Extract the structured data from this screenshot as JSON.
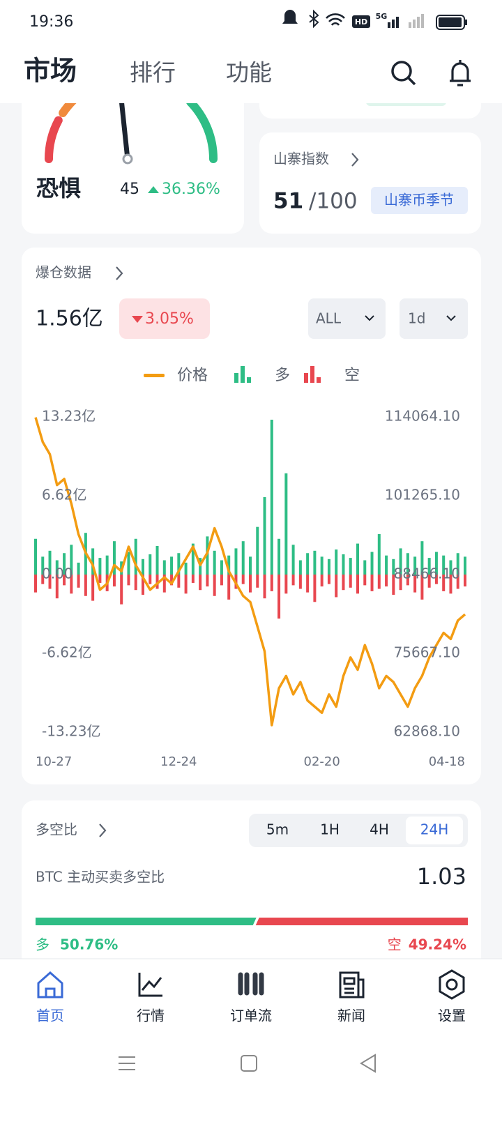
{
  "status_bar": {
    "time": "19:36",
    "hd": "HD",
    "network": "5G"
  },
  "header": {
    "tabs": [
      "市场",
      "排行",
      "功能"
    ]
  },
  "fear_greed": {
    "label": "恐惧",
    "value": 45,
    "change": "36.36%"
  },
  "altcoin_index": {
    "title": "山寨指数",
    "value": "51",
    "max": "/100",
    "badge": "山寨币季节"
  },
  "liquidation": {
    "title": "爆仓数据",
    "total": "1.56亿",
    "change": "3.05%",
    "filters": [
      "ALL",
      "1d"
    ]
  },
  "chart_data": {
    "type": "bar",
    "categories": [
      "10-27",
      null,
      null,
      null,
      null,
      null,
      null,
      null,
      null,
      null,
      null,
      null,
      null,
      null,
      null,
      null,
      null,
      null,
      null,
      null,
      "12-24",
      null,
      null,
      null,
      null,
      null,
      null,
      null,
      null,
      null,
      null,
      null,
      null,
      null,
      null,
      null,
      null,
      null,
      null,
      null,
      "02-20",
      null,
      null,
      null,
      null,
      null,
      null,
      null,
      null,
      null,
      null,
      null,
      null,
      null,
      null,
      null,
      null,
      null,
      null,
      null,
      "04-18"
    ],
    "series": [
      {
        "name": "价格",
        "type": "line",
        "axis": "y2",
        "color": "#f39c12",
        "values": [
          114000,
          110000,
          108000,
          103000,
          104000,
          100000,
          95000,
          92000,
          90000,
          86000,
          87000,
          90000,
          89000,
          93000,
          90000,
          88000,
          86000,
          87000,
          88000,
          87000,
          89000,
          91000,
          93000,
          90000,
          92000,
          96000,
          93000,
          89000,
          87000,
          85000,
          84000,
          80000,
          76000,
          64000,
          70000,
          72000,
          69000,
          71000,
          68000,
          67000,
          66000,
          69000,
          67000,
          72000,
          75000,
          73000,
          77000,
          74000,
          70000,
          72000,
          71000,
          69000,
          67000,
          70000,
          72000,
          75000,
          77000,
          79000,
          78000,
          81000,
          82000
        ]
      },
      {
        "name": "多",
        "type": "bar",
        "color": "#2ebd85",
        "values": [
          3.0,
          1.5,
          2.0,
          1.2,
          1.8,
          2.5,
          1.0,
          3.5,
          2.2,
          1.4,
          1.6,
          2.8,
          1.1,
          1.9,
          3.0,
          1.3,
          1.7,
          2.4,
          1.2,
          1.5,
          1.8,
          1.0,
          2.6,
          1.4,
          3.2,
          2.0,
          1.2,
          1.6,
          2.2,
          2.8,
          1.5,
          4.0,
          6.5,
          13.0,
          3.0,
          8.5,
          2.5,
          1.2,
          1.8,
          2.0,
          1.5,
          1.3,
          2.1,
          1.7,
          1.4,
          2.6,
          1.2,
          1.9,
          3.4,
          1.6,
          1.3,
          2.2,
          1.8,
          1.5,
          2.8,
          1.4,
          1.9,
          1.6,
          1.2,
          1.8,
          1.5
        ]
      },
      {
        "name": "空",
        "type": "bar",
        "color": "#e8474f",
        "values": [
          -1.5,
          -0.8,
          -1.2,
          -2.0,
          -0.9,
          -1.6,
          -1.1,
          -1.8,
          -2.2,
          -0.7,
          -1.4,
          -1.0,
          -2.5,
          -0.9,
          -1.3,
          -1.7,
          -0.8,
          -1.2,
          -1.5,
          -0.9,
          -1.1,
          -1.6,
          -0.7,
          -1.3,
          -1.0,
          -1.8,
          -0.9,
          -2.1,
          -1.2,
          -0.8,
          -1.5,
          -1.1,
          -2.0,
          -1.4,
          -3.7,
          -1.6,
          -0.9,
          -1.2,
          -1.5,
          -2.3,
          -1.0,
          -0.8,
          -1.9,
          -1.3,
          -1.1,
          -1.6,
          -0.9,
          -1.4,
          -1.2,
          -1.0,
          -1.7,
          -1.3,
          -0.9,
          -1.5,
          -2.1,
          -1.1,
          -0.8,
          -1.4,
          -1.6,
          -1.2,
          -1.0
        ]
      }
    ],
    "ylim": [
      -13.23,
      13.23
    ],
    "yticks": [
      {
        "value": 13.23,
        "label": "13.23亿"
      },
      {
        "value": 6.62,
        "label": "6.62亿"
      },
      {
        "value": 0,
        "label": "0.00"
      },
      {
        "value": -6.62,
        "label": "-6.62亿"
      },
      {
        "value": -13.23,
        "label": "-13.23亿"
      }
    ],
    "y2lim": [
      62868.1,
      114064.1
    ],
    "y2ticks": [
      {
        "value": 114064.1,
        "label": "114064.10"
      },
      {
        "value": 101265.1,
        "label": "101265.10"
      },
      {
        "value": 88466.1,
        "label": "88466.10"
      },
      {
        "value": 75667.1,
        "label": "75667.10"
      },
      {
        "value": 62868.1,
        "label": "62868.10"
      }
    ],
    "legend": "top",
    "grid": false
  },
  "long_short": {
    "title": "多空比",
    "intervals": [
      "5m",
      "1H",
      "4H",
      "24H"
    ],
    "selected_index": 3,
    "subtitle": "BTC 主动买卖多空比",
    "ratio": "1.03",
    "long_label": "多",
    "long_value": 50.76,
    "long_value_label": "50.76%",
    "short_label": "空",
    "short_value": 49.24,
    "short_value_label": "49.24%"
  },
  "nav": {
    "items": [
      "首页",
      "行情",
      "订单流",
      "新闻",
      "设置"
    ],
    "active_index": 0
  }
}
